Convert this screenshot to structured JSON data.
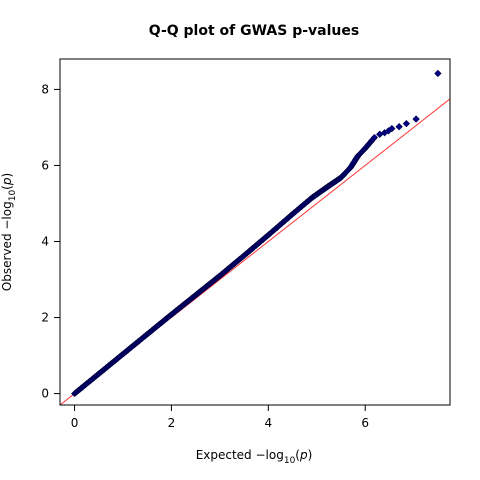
{
  "chart_data": {
    "type": "scatter",
    "title": "Q-Q plot of GWAS p-values",
    "xlabel": {
      "prefix": "Expected  −log",
      "subscript": "10",
      "open": "(",
      "variable": "p",
      "close": ")"
    },
    "ylabel": {
      "prefix": "Observed  −log",
      "subscript": "10",
      "open": "(",
      "variable": "p",
      "close": ")"
    },
    "xlim": [
      -0.3,
      7.75
    ],
    "ylim": [
      -0.3,
      8.8
    ],
    "xticks": [
      {
        "value": 0,
        "label": "0"
      },
      {
        "value": 2,
        "label": "2"
      },
      {
        "value": 4,
        "label": "4"
      },
      {
        "value": 6,
        "label": "6"
      }
    ],
    "yticks": [
      {
        "value": 0,
        "label": "0"
      },
      {
        "value": 2,
        "label": "2"
      },
      {
        "value": 4,
        "label": "4"
      },
      {
        "value": 6,
        "label": "6"
      },
      {
        "value": 8,
        "label": "8"
      }
    ],
    "reference_line": {
      "slope": 1,
      "intercept": 0,
      "color": "#ff3333"
    },
    "point_color": "#000080",
    "grid": false,
    "legend": "none",
    "curve_points": [
      {
        "x": 0.0,
        "y": 0.0
      },
      {
        "x": 1.0,
        "y": 1.04
      },
      {
        "x": 2.0,
        "y": 2.08
      },
      {
        "x": 3.0,
        "y": 3.1
      },
      {
        "x": 3.5,
        "y": 3.63
      },
      {
        "x": 4.0,
        "y": 4.17
      },
      {
        "x": 4.5,
        "y": 4.72
      },
      {
        "x": 4.9,
        "y": 5.15
      },
      {
        "x": 5.2,
        "y": 5.42
      },
      {
        "x": 5.5,
        "y": 5.68
      },
      {
        "x": 5.7,
        "y": 5.95
      },
      {
        "x": 5.85,
        "y": 6.25
      },
      {
        "x": 6.0,
        "y": 6.45
      },
      {
        "x": 6.1,
        "y": 6.6
      },
      {
        "x": 6.2,
        "y": 6.75
      }
    ],
    "tail_points": [
      {
        "x": 6.3,
        "y": 6.82
      },
      {
        "x": 6.4,
        "y": 6.86
      },
      {
        "x": 6.48,
        "y": 6.91
      },
      {
        "x": 6.55,
        "y": 6.97
      },
      {
        "x": 6.7,
        "y": 7.02
      },
      {
        "x": 6.85,
        "y": 7.1
      },
      {
        "x": 7.05,
        "y": 7.22
      },
      {
        "x": 7.5,
        "y": 8.42
      }
    ]
  }
}
